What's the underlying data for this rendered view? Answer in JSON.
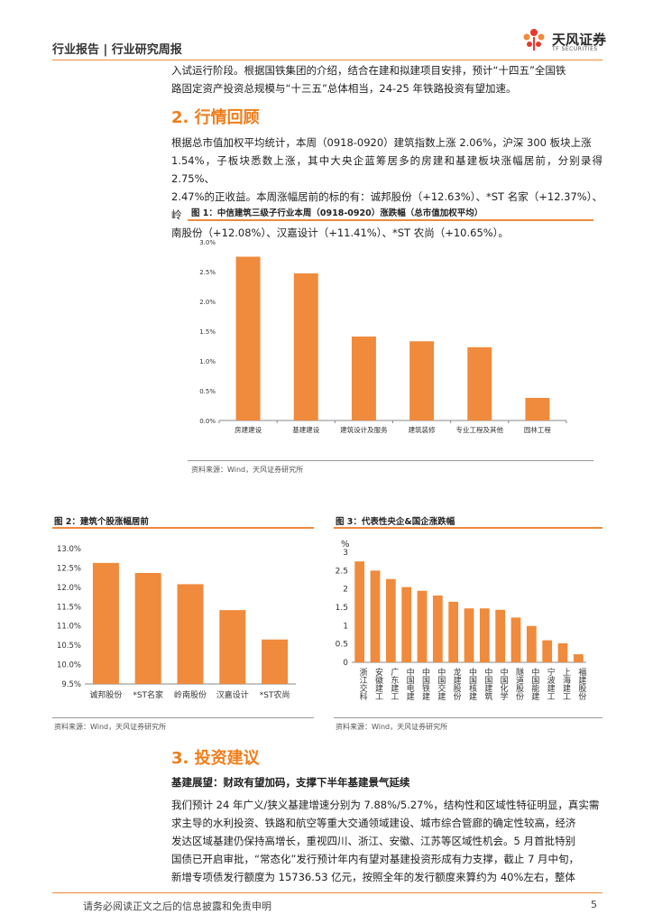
{
  "header": {
    "left_text": "行业报告 | 行业研究周报",
    "logo_name": "天风证券",
    "logo_sub": "TF SECURITIES",
    "logo_colors": [
      "#e8392c",
      "#f08a3c"
    ]
  },
  "intro_paragraph": {
    "lines": [
      "入试运行阶段。根据国铁集团的介绍，结合在建和拟建项目安排，预计“十四五”全国铁",
      "路固定资产投资总规模与“十三五”总体相当，24-25 年铁路投资有望加速。"
    ]
  },
  "section2": {
    "title": "2. 行情回顾",
    "lines": [
      "根据总市值加权平均统计，本周（0918-0920）建筑指数上涨 2.06%，沪深 300 板块上涨",
      "1.54%，子板块悉数上涨，其中大央企蓝筹居多的房建和基建板块涨幅居前，分别录得 2.75%、",
      "2.47%的正收益。本周涨幅居前的标的有：诚邦股份（+12.63%）、*ST 名家（+12.37%）、岭",
      "南股份（+12.08%）、汉嘉设计（+11.41%）、*ST 农尚（+10.65%）。"
    ]
  },
  "figure1": {
    "title": "图 1：中信建筑三级子行业本周（0918-0920）涨跌幅（总市值加权平均）",
    "source": "资料来源：Wind，天风证券研究所",
    "chart_data": {
      "type": "bar",
      "categories": [
        "房建建设",
        "基建建设",
        "建筑设计及服务",
        "建筑装修",
        "专业工程及其他",
        "园林工程"
      ],
      "values": [
        2.75,
        2.47,
        1.41,
        1.33,
        1.23,
        0.38
      ],
      "y_ticks": [
        "0.0%",
        "0.5%",
        "1.0%",
        "1.5%",
        "2.0%",
        "2.5%",
        "3.0%"
      ],
      "ylim": [
        0,
        3.0
      ],
      "color": "#f08a3c",
      "grid": false
    }
  },
  "figure2": {
    "title": "图 2：建筑个股涨幅居前",
    "source": "资料来源：Wind，天风证券研究所",
    "chart_data": {
      "type": "bar",
      "categories": [
        "诚邦股份",
        "*ST名家",
        "岭南股份",
        "汉嘉设计",
        "*ST农尚"
      ],
      "values": [
        12.63,
        12.37,
        12.08,
        11.41,
        10.65
      ],
      "y_ticks": [
        "9.5%",
        "10.0%",
        "10.5%",
        "11.0%",
        "11.5%",
        "12.0%",
        "12.5%",
        "13.0%"
      ],
      "ylim": [
        9.5,
        13.0
      ],
      "color": "#f08a3c",
      "grid": false
    }
  },
  "figure3": {
    "title": "图 3：代表性央企&国企涨跌幅",
    "source": "资料来源：Wind，天风证券研究所",
    "chart_data": {
      "type": "bar",
      "unit_label": "%",
      "categories": [
        "浙江交科",
        "安徽建工",
        "广东建工",
        "中国电建",
        "中国铁建",
        "中国交建",
        "龙建股份",
        "中国核建",
        "中国建筑",
        "中国化学",
        "隧道股份",
        "中国能建",
        "宁波建工",
        "上海建工",
        "福建股份"
      ],
      "values": [
        2.75,
        2.5,
        2.27,
        2.05,
        1.95,
        1.82,
        1.65,
        1.47,
        1.47,
        1.43,
        1.22,
        0.99,
        0.6,
        0.52,
        0.22
      ],
      "y_ticks": [
        "0",
        "0.5",
        "1",
        "1.5",
        "2",
        "2.5",
        "3"
      ],
      "ylim": [
        0,
        3
      ],
      "color": "#f08a3c",
      "grid": false
    }
  },
  "section3": {
    "title": "3. 投资建议",
    "subheading": "基建展望：财政有望加码，支撑下半年基建景气延续",
    "lines": [
      "我们预计 24 年广义/狭义基建增速分别为 7.88%/5.27%，结构性和区域性特征明显，真实需",
      "求主导的水利投资、铁路和航空等重大交通领域建设、城市综合管廊的确定性较高，经济",
      "发达区域基建仍保持高增长，重视四川、浙江、安徽、江苏等区域性机会。5 月首批特别",
      "国债已开启审批，“常态化”发行预计年内有望对基建投资形成有力支撑，截止 7 月中旬，",
      "新增专项债发行额度为 15736.53 亿元，按照全年的发行额度来算约为 40%左右，整体"
    ]
  },
  "footer": {
    "disclaimer": "请务必阅读正文之后的信息披露和免责申明",
    "page_number": "5"
  }
}
